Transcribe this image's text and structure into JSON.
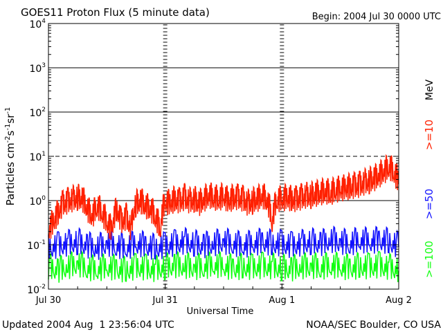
{
  "header": {
    "title": "GOES11 Proton Flux (5 minute data)",
    "begin": "Begin: 2004 Jul 30 0000 UTC"
  },
  "footer": {
    "updated": "Updated 2004 Aug  1 23:56:04 UTC",
    "source": "NOAA/SEC Boulder, CO USA"
  },
  "chart_data": {
    "type": "line",
    "title": "GOES11 Proton Flux (5 minute data)",
    "xlabel": "Universal Time",
    "ylabel": "Particles cm-2s-1sr-1",
    "yscale": "log",
    "ylim_exp": [
      -2,
      4
    ],
    "y_ticks": [
      {
        "exp": -2,
        "label": "10",
        "sup": "-2"
      },
      {
        "exp": -1,
        "label": "10",
        "sup": "-1"
      },
      {
        "exp": 0,
        "label": "10",
        "sup": "0"
      },
      {
        "exp": 1,
        "label": "10",
        "sup": "1"
      },
      {
        "exp": 2,
        "label": "10",
        "sup": "2"
      },
      {
        "exp": 3,
        "label": "10",
        "sup": "3"
      },
      {
        "exp": 4,
        "label": "10",
        "sup": "4"
      }
    ],
    "x_range_hours": [
      0,
      72
    ],
    "x_ticks": [
      {
        "hour": 0,
        "label": "Jul 30"
      },
      {
        "hour": 24,
        "label": "Jul 31"
      },
      {
        "hour": 48,
        "label": "Aug 1"
      },
      {
        "hour": 72,
        "label": "Aug 2"
      }
    ],
    "units_label": "MeV",
    "series": [
      {
        "name": ">=10",
        "color": "#ff2000",
        "x_hours": [
          0,
          1,
          2,
          3,
          4,
          5,
          6,
          7,
          8,
          9,
          10,
          11,
          12,
          13,
          14,
          15,
          16,
          17,
          18,
          19,
          20,
          21,
          22,
          23,
          24,
          25,
          26,
          27,
          28,
          29,
          30,
          31,
          32,
          33,
          34,
          35,
          36,
          37,
          38,
          39,
          40,
          41,
          42,
          43,
          44,
          45,
          46,
          47,
          48,
          49,
          50,
          51,
          52,
          53,
          54,
          55,
          56,
          57,
          58,
          59,
          60,
          61,
          62,
          63,
          64,
          65,
          66,
          67,
          68,
          69,
          70,
          71,
          72
        ],
        "values": [
          0.2,
          0.3,
          0.5,
          0.8,
          0.9,
          1.0,
          1.1,
          1.0,
          0.6,
          0.4,
          0.7,
          0.5,
          0.3,
          0.2,
          0.6,
          0.3,
          0.4,
          0.2,
          0.8,
          0.9,
          0.7,
          0.6,
          0.4,
          0.2,
          0.9,
          0.8,
          1.0,
          0.9,
          1.1,
          0.9,
          1.0,
          0.8,
          1.0,
          1.2,
          1.1,
          1.0,
          1.2,
          0.9,
          1.1,
          1.1,
          1.0,
          0.8,
          0.9,
          1.0,
          1.2,
          0.9,
          0.3,
          1.0,
          1.0,
          1.1,
          1.0,
          1.0,
          1.1,
          1.2,
          1.2,
          1.3,
          1.4,
          1.5,
          1.4,
          1.6,
          1.7,
          1.8,
          1.9,
          2.0,
          2.1,
          2.4,
          2.6,
          2.9,
          3.5,
          4.2,
          5.5,
          4.0,
          2.5
        ]
      },
      {
        "name": ">=50",
        "color": "#1010ff",
        "x_hours": [
          0,
          2,
          4,
          6,
          8,
          10,
          12,
          14,
          16,
          18,
          20,
          22,
          24,
          26,
          28,
          30,
          32,
          34,
          36,
          38,
          40,
          42,
          44,
          46,
          48,
          50,
          52,
          54,
          56,
          58,
          60,
          62,
          64,
          66,
          68,
          70,
          72
        ],
        "values": [
          0.08,
          0.09,
          0.1,
          0.11,
          0.09,
          0.08,
          0.1,
          0.09,
          0.08,
          0.1,
          0.09,
          0.08,
          0.09,
          0.1,
          0.11,
          0.1,
          0.09,
          0.1,
          0.11,
          0.1,
          0.09,
          0.1,
          0.11,
          0.1,
          0.1,
          0.09,
          0.1,
          0.11,
          0.1,
          0.12,
          0.11,
          0.1,
          0.12,
          0.11,
          0.12,
          0.11,
          0.09
        ]
      },
      {
        "name": ">=100",
        "color": "#10ff10",
        "x_hours": [
          0,
          2,
          4,
          6,
          8,
          10,
          12,
          14,
          16,
          18,
          20,
          22,
          24,
          26,
          28,
          30,
          32,
          34,
          36,
          38,
          40,
          42,
          44,
          46,
          48,
          50,
          52,
          54,
          56,
          58,
          60,
          62,
          64,
          66,
          68,
          70,
          72
        ],
        "values": [
          0.03,
          0.025,
          0.03,
          0.035,
          0.028,
          0.026,
          0.03,
          0.027,
          0.025,
          0.03,
          0.028,
          0.026,
          0.03,
          0.032,
          0.031,
          0.029,
          0.03,
          0.033,
          0.031,
          0.028,
          0.03,
          0.029,
          0.031,
          0.03,
          0.028,
          0.027,
          0.03,
          0.031,
          0.029,
          0.032,
          0.03,
          0.028,
          0.031,
          0.03,
          0.032,
          0.029,
          0.026
        ]
      }
    ]
  }
}
